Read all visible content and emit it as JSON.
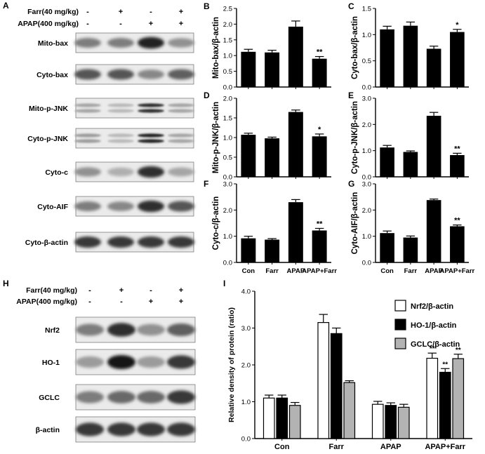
{
  "panel_letters": [
    "A",
    "B",
    "C",
    "D",
    "E",
    "F",
    "G",
    "H",
    "I"
  ],
  "western_A": {
    "treatments": [
      {
        "label": "Farr(40 mg/kg)",
        "signs": [
          "-",
          "+",
          "-",
          "+"
        ]
      },
      {
        "label": "APAP(400 mg/kg)",
        "signs": [
          "-",
          "-",
          "+",
          "+"
        ]
      }
    ],
    "blots": [
      {
        "label": "Mito-bax",
        "intensity": [
          0.45,
          0.45,
          0.9,
          0.35
        ],
        "bands": 1
      },
      {
        "label": "Cyto-bax",
        "intensity": [
          0.65,
          0.65,
          0.4,
          0.6
        ],
        "bands": 1
      },
      {
        "label": "Mito-p-JNK",
        "intensity": [
          0.25,
          0.15,
          0.85,
          0.25
        ],
        "bands": 2
      },
      {
        "label": "Cyto-p-JNK",
        "intensity": [
          0.3,
          0.15,
          0.9,
          0.25
        ],
        "bands": 2
      },
      {
        "label": "Cyto-c",
        "intensity": [
          0.35,
          0.2,
          0.85,
          0.25
        ],
        "bands": 1
      },
      {
        "label": "Cyto-AIF",
        "intensity": [
          0.45,
          0.4,
          0.85,
          0.65
        ],
        "bands": 1
      },
      {
        "label": "Cyto-β-actin",
        "intensity": [
          0.8,
          0.8,
          0.8,
          0.8
        ],
        "bands": 1
      }
    ]
  },
  "western_H": {
    "treatments": [
      {
        "label": "Farr(40 mg/kg)",
        "signs": [
          "-",
          "+",
          "-",
          "+"
        ]
      },
      {
        "label": "APAP(400 mg/kg)",
        "signs": [
          "-",
          "-",
          "+",
          "+"
        ]
      }
    ],
    "blots": [
      {
        "label": "Nrf2",
        "intensity": [
          0.45,
          0.85,
          0.35,
          0.6
        ],
        "bands": 1
      },
      {
        "label": "HO-1",
        "intensity": [
          0.3,
          0.95,
          0.3,
          0.8
        ],
        "bands": 1
      },
      {
        "label": "GCLC",
        "intensity": [
          0.45,
          0.55,
          0.55,
          0.8
        ],
        "bands": 1
      },
      {
        "label": "β-actin",
        "intensity": [
          0.8,
          0.8,
          0.8,
          0.8
        ],
        "bands": 1
      }
    ]
  },
  "chart_data": [
    {
      "panel": "B",
      "type": "bar",
      "ylabel": "Mito-bax/β-actin",
      "categories": [
        "Con",
        "Farr",
        "APAP",
        "APAP+Farr"
      ],
      "values": [
        1.12,
        1.1,
        1.92,
        0.9
      ],
      "errors": [
        0.08,
        0.07,
        0.18,
        0.07
      ],
      "sig": [
        "",
        "",
        "",
        "**"
      ],
      "ylim": [
        0,
        2.5
      ],
      "yticks": [
        "0.0",
        "0.5",
        "1.0",
        "1.5",
        "2.0",
        "2.5"
      ],
      "show_xlabels": false
    },
    {
      "panel": "C",
      "type": "bar",
      "ylabel": "Cyto-bax/β-actin",
      "categories": [
        "Con",
        "Farr",
        "APAP",
        "APAP+Farr"
      ],
      "values": [
        1.1,
        1.17,
        0.73,
        1.05
      ],
      "errors": [
        0.06,
        0.07,
        0.05,
        0.05
      ],
      "sig": [
        "",
        "",
        "",
        "*"
      ],
      "ylim": [
        0,
        1.5
      ],
      "yticks": [
        "0.0",
        "0.5",
        "1.0",
        "1.5"
      ],
      "show_xlabels": false
    },
    {
      "panel": "D",
      "type": "bar",
      "ylabel": "Mito-p-JNK/β-actin",
      "categories": [
        "Con",
        "Farr",
        "APAP",
        "APAP+Farr"
      ],
      "values": [
        1.07,
        0.98,
        1.65,
        1.03
      ],
      "errors": [
        0.04,
        0.03,
        0.05,
        0.06
      ],
      "sig": [
        "",
        "",
        "",
        "*"
      ],
      "ylim": [
        0,
        2.0
      ],
      "yticks": [
        "0.0",
        "0.5",
        "1.0",
        "1.5",
        "2.0"
      ],
      "show_xlabels": false
    },
    {
      "panel": "E",
      "type": "bar",
      "ylabel": "Cyto-p-JNK/β-actin",
      "categories": [
        "Con",
        "Farr",
        "APAP",
        "APAP+Farr"
      ],
      "values": [
        1.12,
        0.95,
        2.33,
        0.83
      ],
      "errors": [
        0.08,
        0.04,
        0.13,
        0.07
      ],
      "sig": [
        "",
        "",
        "",
        "**"
      ],
      "ylim": [
        0,
        3.0
      ],
      "yticks": [
        "0.0",
        "1.0",
        "2.0",
        "3.0"
      ],
      "show_xlabels": false
    },
    {
      "panel": "F",
      "type": "bar",
      "ylabel": "Cyto-c/β-actin",
      "categories": [
        "Con",
        "Farr",
        "APAP",
        "APAP+Farr"
      ],
      "values": [
        0.92,
        0.87,
        2.3,
        1.22
      ],
      "errors": [
        0.08,
        0.04,
        0.1,
        0.08
      ],
      "sig": [
        "",
        "",
        "",
        "**"
      ],
      "ylim": [
        0,
        3.0
      ],
      "yticks": [
        "0.0",
        "1.0",
        "2.0",
        "3.0"
      ],
      "show_xlabels": true
    },
    {
      "panel": "G",
      "type": "bar",
      "ylabel": "Cyto-AIF/β-actin",
      "categories": [
        "Con",
        "Farr",
        "APAP",
        "APAP+Farr"
      ],
      "values": [
        1.12,
        0.95,
        2.38,
        1.38
      ],
      "errors": [
        0.08,
        0.06,
        0.04,
        0.05
      ],
      "sig": [
        "",
        "",
        "",
        "**"
      ],
      "ylim": [
        0,
        3.0
      ],
      "yticks": [
        "0.0",
        "1.0",
        "2.0",
        "3.0"
      ],
      "show_xlabels": true
    },
    {
      "panel": "I",
      "type": "bar",
      "ylabel": "Relative density of protein (ratio)",
      "categories": [
        "Con",
        "Farr",
        "APAP",
        "APAP+Farr"
      ],
      "series": [
        {
          "name": "Nrf2/β-actin",
          "color": "#ffffff",
          "values": [
            1.1,
            3.15,
            0.93,
            2.18
          ],
          "errors": [
            0.08,
            0.22,
            0.08,
            0.14
          ],
          "sig": [
            "",
            "",
            "",
            "**"
          ]
        },
        {
          "name": "HO-1/β-actin",
          "color": "#000000",
          "values": [
            1.1,
            2.85,
            0.9,
            1.8
          ],
          "errors": [
            0.08,
            0.15,
            0.07,
            0.1
          ],
          "sig": [
            "",
            "",
            "",
            "**"
          ]
        },
        {
          "name": "GCLC/β-actin",
          "color": "#b3b3b3",
          "values": [
            0.9,
            1.52,
            0.85,
            2.17
          ],
          "errors": [
            0.08,
            0.05,
            0.08,
            0.12
          ],
          "sig": [
            "",
            "",
            "",
            "**"
          ]
        }
      ],
      "ylim": [
        0,
        4.0
      ],
      "yticks": [
        "0.0",
        "1.0",
        "2.0",
        "3.0",
        "4.0"
      ],
      "legend": "top-right"
    }
  ]
}
